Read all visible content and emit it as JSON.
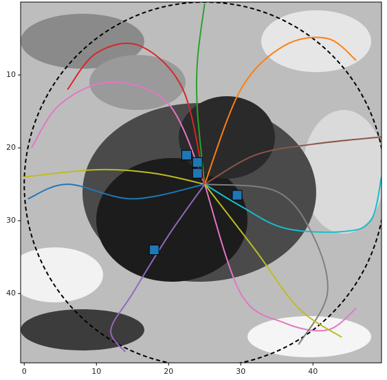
{
  "chart_data": {
    "type": "line",
    "xlim": [
      -0.5,
      49.5
    ],
    "ylim": [
      49.5,
      0
    ],
    "xticks": [
      0,
      10,
      20,
      30,
      40
    ],
    "yticks": [
      10,
      20,
      30,
      40
    ],
    "circle": {
      "center": [
        25,
        25
      ],
      "radius": 25
    },
    "series": [
      {
        "color": "#17becf",
        "x": [
          25,
          30,
          36,
          44,
          48,
          49.5
        ],
        "y": [
          25,
          28,
          31,
          31.5,
          30,
          24
        ]
      },
      {
        "color": "#8c564b",
        "x": [
          25,
          32,
          40,
          49.5
        ],
        "y": [
          25,
          21,
          19.5,
          18.5
        ]
      },
      {
        "color": "#bcbd22",
        "x": [
          25,
          18,
          10,
          0
        ],
        "y": [
          25,
          23.5,
          23,
          24
        ]
      },
      {
        "color": "#e377c2",
        "x": [
          25,
          20,
          12,
          5,
          1
        ],
        "y": [
          25,
          14,
          11,
          14,
          20
        ]
      },
      {
        "color": "#2ca02c",
        "x": [
          25,
          24,
          24,
          25
        ],
        "y": [
          25,
          15,
          8,
          0.2
        ]
      },
      {
        "color": "#e377c2",
        "x": [
          25,
          30,
          36,
          42,
          46
        ],
        "y": [
          25,
          40,
          44,
          45,
          42
        ]
      },
      {
        "color": "#9467bd",
        "x": [
          25,
          20,
          15,
          12,
          14
        ],
        "y": [
          25,
          32,
          40,
          45,
          48
        ]
      },
      {
        "color": "#ff7f0e",
        "x": [
          25,
          30,
          36,
          42,
          46
        ],
        "y": [
          25,
          12,
          6,
          5,
          8
        ]
      },
      {
        "color": "#1f77b4",
        "x": [
          25,
          15,
          6,
          0.5
        ],
        "y": [
          25,
          27,
          25,
          27
        ]
      },
      {
        "color": "#7f7f7f",
        "x": [
          25,
          35,
          40,
          42,
          38
        ],
        "y": [
          25,
          26,
          32,
          40,
          47
        ]
      },
      {
        "color": "#d62728",
        "x": [
          25,
          22,
          16,
          10,
          6
        ],
        "y": [
          25,
          12,
          6,
          7,
          12
        ]
      },
      {
        "color": "#bcbd22",
        "x": [
          25,
          32,
          38,
          44
        ],
        "y": [
          25,
          34,
          42,
          46
        ]
      }
    ],
    "markers": {
      "color": "#1f77b4",
      "x": [
        22.5,
        24,
        24,
        29.5,
        18
      ],
      "y": [
        21,
        22,
        23.5,
        26.5,
        34
      ]
    }
  }
}
